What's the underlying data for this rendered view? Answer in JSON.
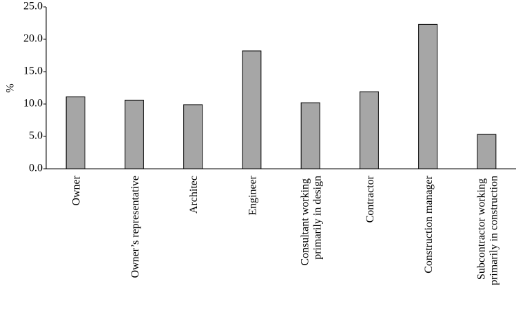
{
  "chart_data": {
    "type": "bar",
    "y_label": "%",
    "categories": [
      "Owner",
      "Owner’s representative",
      "Architec",
      "Engineer",
      "Consultant working primarily in design",
      "Contractor",
      "Construction manager",
      "Subcontractor working primarily in construction"
    ],
    "values": [
      11.1,
      10.6,
      9.9,
      18.2,
      10.2,
      11.9,
      22.3,
      5.3
    ],
    "color": "#a6a6a6",
    "ylim": [
      0,
      25
    ],
    "yticks": [
      {
        "value": 0,
        "label": "0.0"
      },
      {
        "value": 5,
        "label": "5.0"
      },
      {
        "value": 10,
        "label": "10.0"
      },
      {
        "value": 15,
        "label": "15.0"
      },
      {
        "value": 20,
        "label": "20.0"
      },
      {
        "value": 25,
        "label": "25.0"
      }
    ],
    "grid": false
  }
}
